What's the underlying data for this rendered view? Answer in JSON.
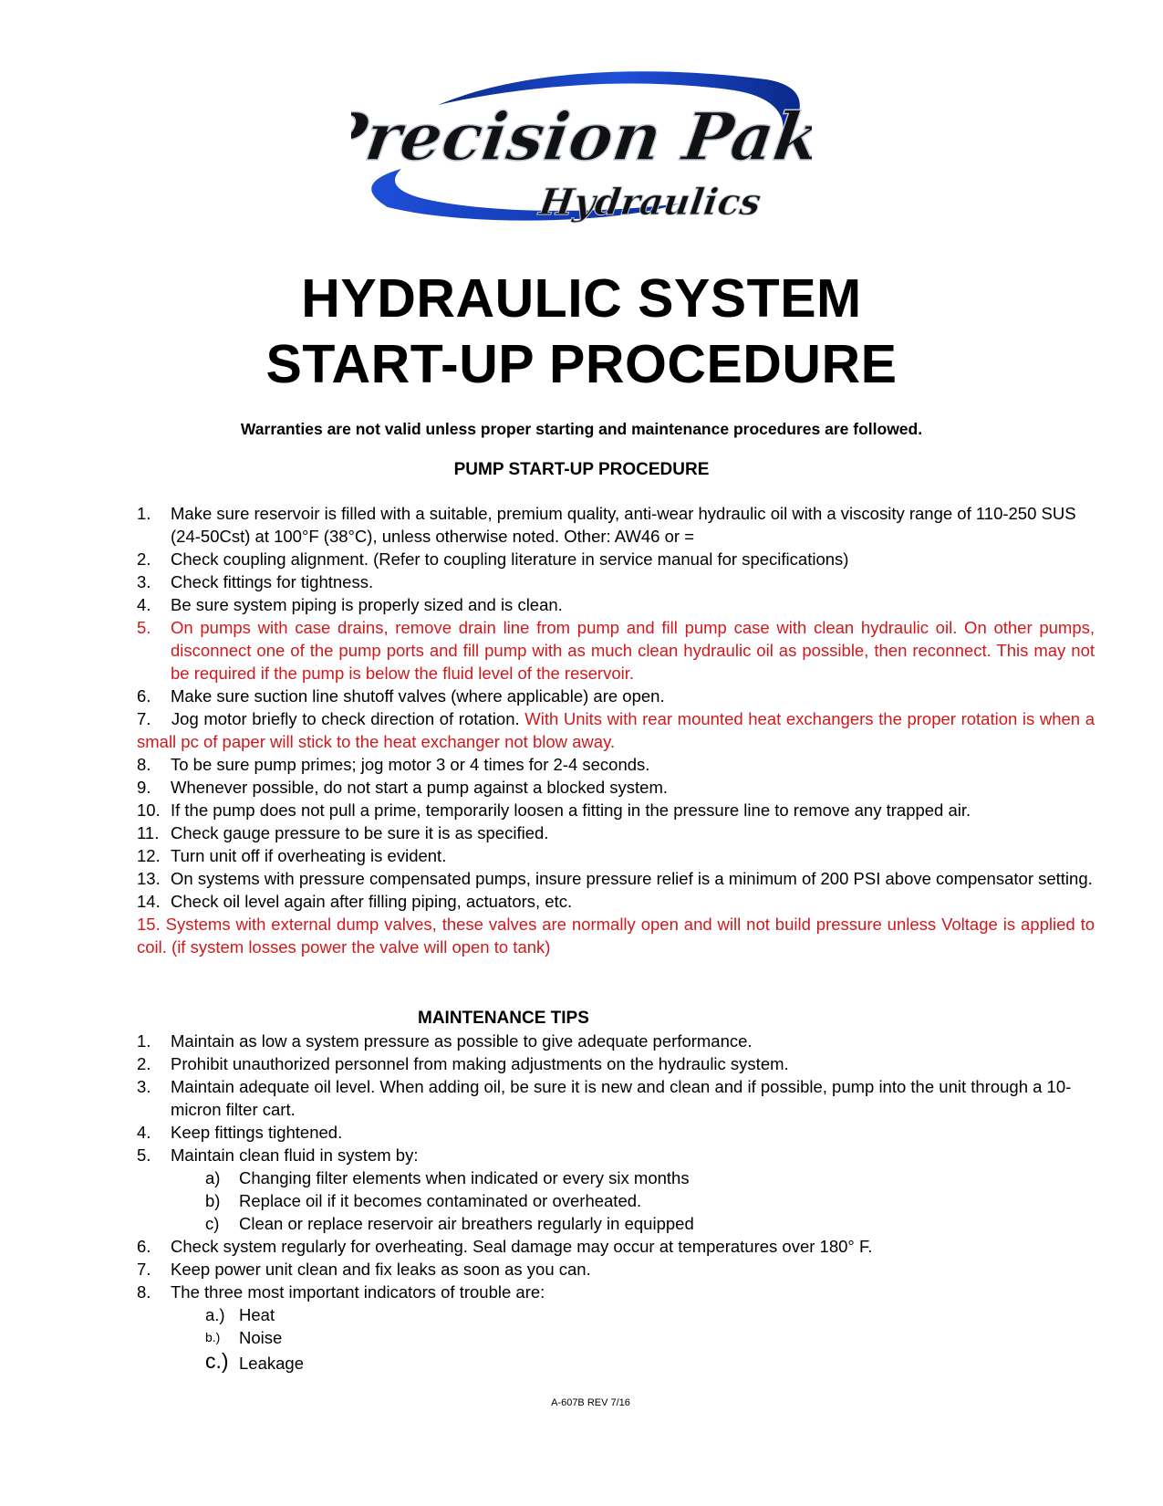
{
  "logo": {
    "line1": "Precision Pak",
    "line2": "Hydraulics",
    "accent_color": "#1e4fd8"
  },
  "title": {
    "line1": "HYDRAULIC SYSTEM",
    "line2": "START-UP PROCEDURE"
  },
  "warranty": "Warranties are not valid unless proper starting and maintenance procedures are followed.",
  "pump": {
    "heading": "PUMP START-UP PROCEDURE",
    "items": [
      {
        "num": "1.",
        "text": "Make sure reservoir is filled with a suitable, premium quality, anti-wear hydraulic oil with a viscosity range of 110-250 SUS (24-50Cst) at 100°F (38°C), unless otherwise noted.  Other: AW46 or ="
      },
      {
        "num": "2.",
        "text": "Check coupling alignment.  (Refer to coupling literature in service manual for specifications)"
      },
      {
        "num": "3.",
        "text": "Check fittings for tightness."
      },
      {
        "num": "4.",
        "text": "Be sure system piping is properly sized and is clean."
      },
      {
        "num": "5.",
        "text": "On pumps with case drains, remove drain line from pump and fill pump case with clean hydraulic oil.  On other pumps, disconnect one of the pump ports and fill pump with as much clean hydraulic oil as possible, then reconnect. This may not be required if the pump is below the fluid level of the reservoir."
      },
      {
        "num": "6.",
        "text": "Make sure suction line shutoff valves (where applicable) are open."
      },
      {
        "num": "7.",
        "text": "Jog motor briefly to check direction of rotation. ",
        "red_text": "With Units with rear mounted heat exchangers the proper rotation is when a small pc of paper will stick to the heat exchanger not blow away."
      },
      {
        "num": "8.",
        "text": "To be sure pump primes; jog motor 3 or 4 times for 2-4 seconds."
      },
      {
        "num": "9.",
        "text": "Whenever possible, do not start a pump against a blocked system."
      },
      {
        "num": "10.",
        "text": "If the pump does not pull a prime, temporarily loosen a fitting in the pressure line to remove any trapped air."
      },
      {
        "num": "11.",
        "text": "Check gauge pressure to be sure it is as specified."
      },
      {
        "num": "12.",
        "text": "Turn unit off if overheating is evident."
      },
      {
        "num": "13.",
        "text": "On systems with pressure compensated pumps, insure pressure relief is a minimum of 200 PSI above compensator setting."
      },
      {
        "num": "14.",
        "text": "Check oil level again after filling piping, actuators, etc."
      },
      {
        "num": "15.",
        "text": "Systems with external dump valves, these valves are normally open and will not build pressure unless Voltage is applied to coil. (if system losses power the valve will open to tank)"
      }
    ]
  },
  "maintenance": {
    "heading": "MAINTENANCE TIPS",
    "items": [
      {
        "num": "1.",
        "text": "Maintain as low a system pressure as possible to give adequate performance."
      },
      {
        "num": "2.",
        "text": "Prohibit unauthorized personnel from making adjustments on the hydraulic system."
      },
      {
        "num": "3.",
        "text": "Maintain adequate oil level.  When adding oil, be sure it is new and clean and if possible, pump into the unit through a 10-micron filter cart."
      },
      {
        "num": "4.",
        "text": "Keep fittings tightened."
      },
      {
        "num": "5.",
        "text": "Maintain clean fluid in system by:"
      },
      {
        "num": "a)",
        "text": "Changing filter elements when indicated or every six months"
      },
      {
        "num": "b)",
        "text": "Replace oil if it becomes contaminated or overheated."
      },
      {
        "num": "c)",
        "text": "Clean or replace reservoir air breathers regularly in equipped"
      },
      {
        "num": "6.",
        "text": "Check system regularly for overheating.  Seal damage may occur at temperatures over 180° F."
      },
      {
        "num": "7.",
        "text": "Keep power unit clean and fix leaks as soon as you can."
      },
      {
        "num": "8.",
        "text": "The three most important indicators of  trouble are:"
      },
      {
        "num": "a.)",
        "text": "Heat"
      },
      {
        "num": "b.)",
        "text": "Noise"
      },
      {
        "num": "c.)",
        "text": "Leakage"
      }
    ]
  },
  "footer": "A-607B  REV 7/16"
}
